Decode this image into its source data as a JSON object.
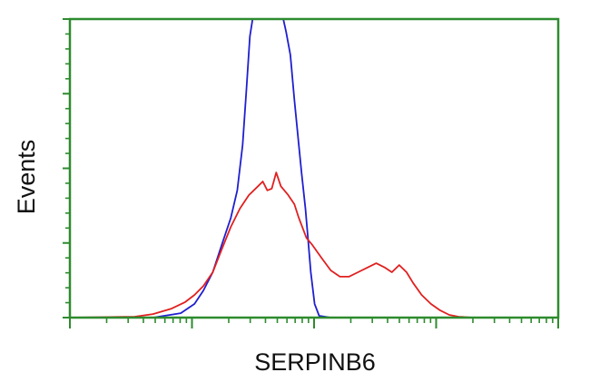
{
  "chart_data": {
    "type": "line",
    "title": "",
    "xlabel": "SERPINB6",
    "ylabel": "Events",
    "xscale": "log",
    "xlim": [
      1,
      10000
    ],
    "ylim": [
      0,
      100
    ],
    "grid": false,
    "legend": "none",
    "axis_color": "#2e8b2e",
    "series": [
      {
        "color": "#1f1fd0",
        "x": [
          1,
          4.8,
          8.1,
          10.5,
          12.4,
          14.8,
          17.5,
          20.8,
          23.5,
          26,
          27.9,
          29.8,
          31.4,
          56,
          59,
          64,
          69,
          75,
          79,
          85,
          89.5,
          94,
          101,
          110,
          137,
          10000
        ],
        "y": [
          0,
          0,
          1.5,
          4.6,
          9.1,
          15.2,
          24.3,
          33.4,
          42.6,
          57.8,
          76,
          94.2,
          100,
          100,
          95.7,
          88,
          73,
          57.8,
          48.6,
          36.5,
          25.8,
          15.2,
          4.6,
          0.6,
          0,
          0
        ]
      },
      {
        "color": "#e02020",
        "x": [
          1,
          3.4,
          4.8,
          6.8,
          8.8,
          10.5,
          12.4,
          14.8,
          17.5,
          20.8,
          24.7,
          29.2,
          34.8,
          38,
          41.4,
          45,
          49,
          53.4,
          61.5,
          69,
          75,
          86.6,
          97,
          116,
          137,
          163,
          193,
          229,
          272,
          323,
          383,
          434,
          498,
          572,
          647,
          761,
          906,
          1080,
          1280,
          1520,
          1980,
          10000
        ],
        "y": [
          0,
          0.3,
          1.2,
          3,
          5.2,
          7.6,
          10.6,
          15.2,
          22.8,
          30.4,
          36.5,
          41,
          44,
          45.6,
          42.6,
          43.2,
          48.6,
          44,
          41,
          38,
          33.4,
          26.7,
          24.3,
          19.8,
          15.8,
          13.7,
          13.7,
          15.2,
          16.7,
          18.2,
          16.7,
          15.2,
          17.6,
          15.2,
          11.6,
          7.6,
          4.6,
          2.4,
          0.9,
          0.3,
          0,
          0
        ]
      }
    ]
  }
}
